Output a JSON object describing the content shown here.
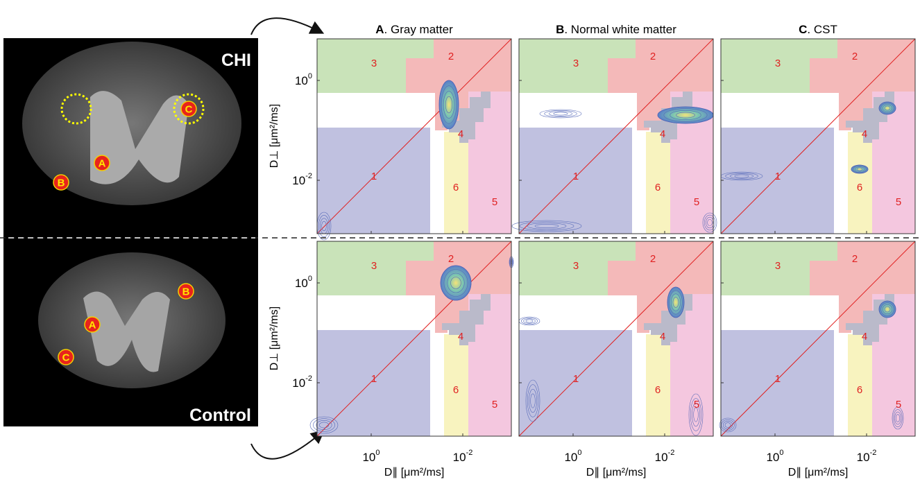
{
  "left_image": {
    "top_label": "CHI",
    "bottom_label": "Control",
    "markers": [
      "A",
      "B",
      "C"
    ]
  },
  "columns": [
    {
      "letter": "A",
      "title": ". Gray matter"
    },
    {
      "letter": "B",
      "title": ". Normal white matter"
    },
    {
      "letter": "C",
      "title": ". CST"
    }
  ],
  "y_axis_label": "D⊥ [μm²/ms]",
  "x_axis_label": "D∥ [μm²/ms]",
  "ticks": [
    {
      "base": "10",
      "exp": "-2"
    },
    {
      "base": "10",
      "exp": "0"
    }
  ],
  "region_labels": [
    "1",
    "2",
    "3",
    "4",
    "5",
    "6"
  ]
}
